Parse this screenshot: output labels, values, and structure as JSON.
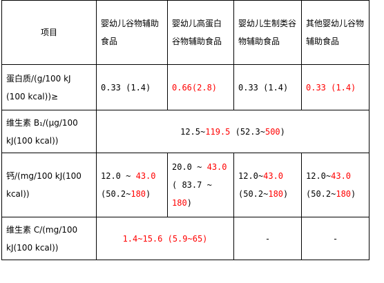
{
  "chart_data": {
    "type": "table",
    "colors": {
      "text": "#000000",
      "highlight": "#ff0000",
      "border": "#000000",
      "background": "#ffffff"
    },
    "header": {
      "item": "项目",
      "col1": "婴幼儿谷物辅助食品",
      "col2": "婴幼儿高蛋白谷物辅助食品",
      "col3": "婴幼儿生制类谷物辅助食品",
      "col4": "其他婴幼儿谷物辅助食品"
    },
    "rows": {
      "protein": {
        "label": "蛋白质/(g/100 kJ (100 kcal))≥",
        "c1": "0.33 (1.4)",
        "c2_min": "0.66",
        "c2_paren": "(2.8)",
        "c3": "0.33 (1.4)",
        "c4_min": "0.33",
        "c4_paren": "(1.4)"
      },
      "vitb1": {
        "label": "维生素 B₁/(μg/100 kJ(100 kcal))",
        "min": "12.5",
        "tilde": "~",
        "max": "119.5",
        "paren_open": "(52.3~",
        "paren_max": "500",
        "paren_close": ")"
      },
      "calcium": {
        "label": "钙/(mg/100 kJ(100 kcal))",
        "c1_min": "12.0",
        "c1_tilde": "~",
        "c1_max": "43.0",
        "c1_paren_open": "(50.2~",
        "c1_paren_max": "180",
        "c1_paren_close": ")",
        "c2_min": "20.0",
        "c2_tilde": "~",
        "c2_max": "43.0",
        "c2_paren_open": "( 83.7 ~",
        "c2_paren_max": "180",
        "c2_paren_close": ")",
        "c3_min": "12.0~",
        "c3_max": "43.0",
        "c3_paren_open": "(50.2~",
        "c3_paren_max": "180",
        "c3_paren_close": ")",
        "c4_min": "12.0~",
        "c4_max": "43.0",
        "c4_paren_open": "(50.2~",
        "c4_paren_max": "180",
        "c4_paren_close": ")"
      },
      "vitc": {
        "label": "维生素 C/(mg/100 kJ(100 kcal))",
        "range": "1.4~15.6 (5.9~65)",
        "c3": "-",
        "c4": "-"
      }
    }
  }
}
